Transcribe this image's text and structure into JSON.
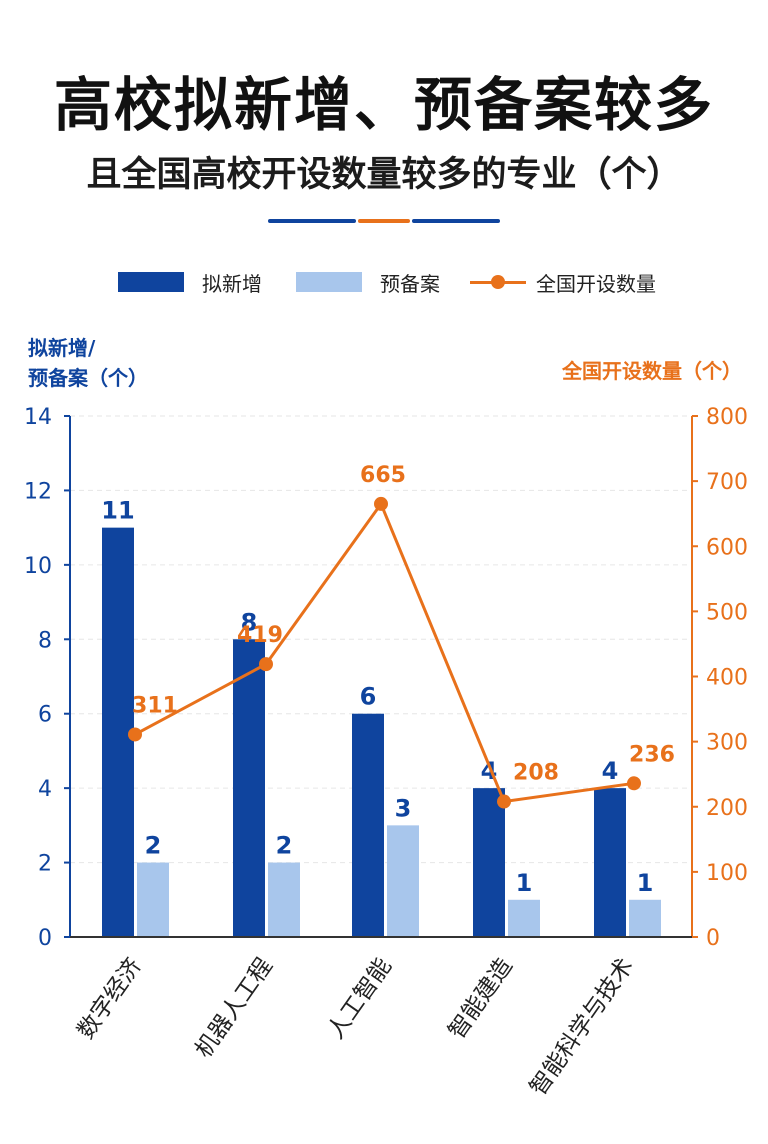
{
  "chart_data": {
    "type": "bar",
    "title": "高校拟新增、预备案较多",
    "subtitle": "且全国高校开设数量较多的专业（个）",
    "categories": [
      "数字经济",
      "机器人工程",
      "人工智能",
      "智能建造",
      "智能科学与技术"
    ],
    "series": [
      {
        "name": "拟新增",
        "type": "bar",
        "axis": "left",
        "color": "#0f449e",
        "values": [
          11,
          8,
          6,
          4,
          4
        ]
      },
      {
        "name": "预备案",
        "type": "bar",
        "axis": "left",
        "color": "#a8c6ec",
        "values": [
          2,
          2,
          3,
          1,
          1
        ]
      },
      {
        "name": "全国开设数量",
        "type": "line",
        "axis": "right",
        "color": "#e8711b",
        "values": [
          311,
          419,
          665,
          208,
          236
        ]
      }
    ],
    "y_left": {
      "label_line1": "拟新增/",
      "label_line2": "预备案（个）",
      "ylim": [
        0,
        14
      ],
      "ticks": [
        0,
        2,
        4,
        6,
        8,
        10,
        12,
        14
      ],
      "color": "#0f449e"
    },
    "y_right": {
      "label": "全国开设数量（个）",
      "ylim": [
        0,
        800
      ],
      "ticks": [
        0,
        100,
        200,
        300,
        400,
        500,
        600,
        700,
        800
      ],
      "color": "#e8711b"
    },
    "grid": true,
    "legend": "top"
  },
  "colors": {
    "rule_blue": "#0f449e",
    "rule_orange": "#e8711b",
    "grid": "#e6e6e6"
  }
}
